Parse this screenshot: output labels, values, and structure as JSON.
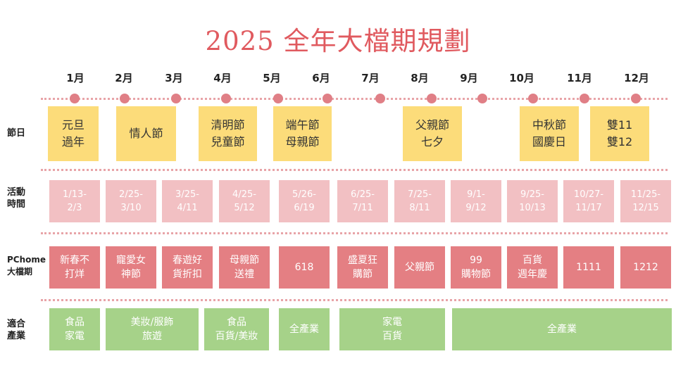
{
  "title": "2025 全年大檔期規劃",
  "months": [
    "1月",
    "2月",
    "3月",
    "4月",
    "5月",
    "6月",
    "7月",
    "8月",
    "9月",
    "10月",
    "11月",
    "12月"
  ],
  "row_labels": {
    "holiday": "節日",
    "period": "活動\n時間",
    "pchome": "PChome\n大檔期",
    "industry": "適合\n產業"
  },
  "holidays": [
    {
      "text": "元旦\n過年"
    },
    {
      "text": "情人節"
    },
    {
      "text": "清明節\n兒童節"
    },
    {
      "text": "端午節\n母親節"
    },
    {
      "text": "父親節\n七夕"
    },
    {
      "text": "中秋節\n國慶日"
    },
    {
      "text": "雙11\n雙12"
    }
  ],
  "periods": [
    {
      "text": "1/13-\n2/3"
    },
    {
      "text": "2/25-\n3/10"
    },
    {
      "text": "3/25-\n4/11"
    },
    {
      "text": "4/25-\n5/12"
    },
    {
      "text": "5/26-\n6/19"
    },
    {
      "text": "6/25-\n7/11"
    },
    {
      "text": "7/25-\n8/11"
    },
    {
      "text": "9/1-\n9/12"
    },
    {
      "text": "9/25-\n10/13"
    },
    {
      "text": "10/27-\n11/17"
    },
    {
      "text": "11/25-\n12/15"
    }
  ],
  "pchome_events": [
    {
      "text": "新春不\n打烊"
    },
    {
      "text": "寵愛女\n神節"
    },
    {
      "text": "春遊好\n貨折扣"
    },
    {
      "text": "母親節\n送禮"
    },
    {
      "text": "618"
    },
    {
      "text": "盛夏狂\n購節"
    },
    {
      "text": "父親節"
    },
    {
      "text": "99\n購物節"
    },
    {
      "text": "百貨\n週年慶"
    },
    {
      "text": "1111"
    },
    {
      "text": "1212"
    }
  ],
  "industries": [
    {
      "text": "食品\n家電"
    },
    {
      "text": "美妝/服飾\n旅遊"
    },
    {
      "text": "食品\n百貨/美妝"
    },
    {
      "text": "全產業"
    },
    {
      "text": "家電\n百貨"
    },
    {
      "text": "全產業"
    }
  ],
  "colors": {
    "title": "#e05a5f",
    "dot": "#e07f86",
    "holiday_box": "#fcdc7a",
    "period_box": "#f2c0c3",
    "pchome_box": "#e47f83",
    "industry_box": "#a6d289"
  }
}
